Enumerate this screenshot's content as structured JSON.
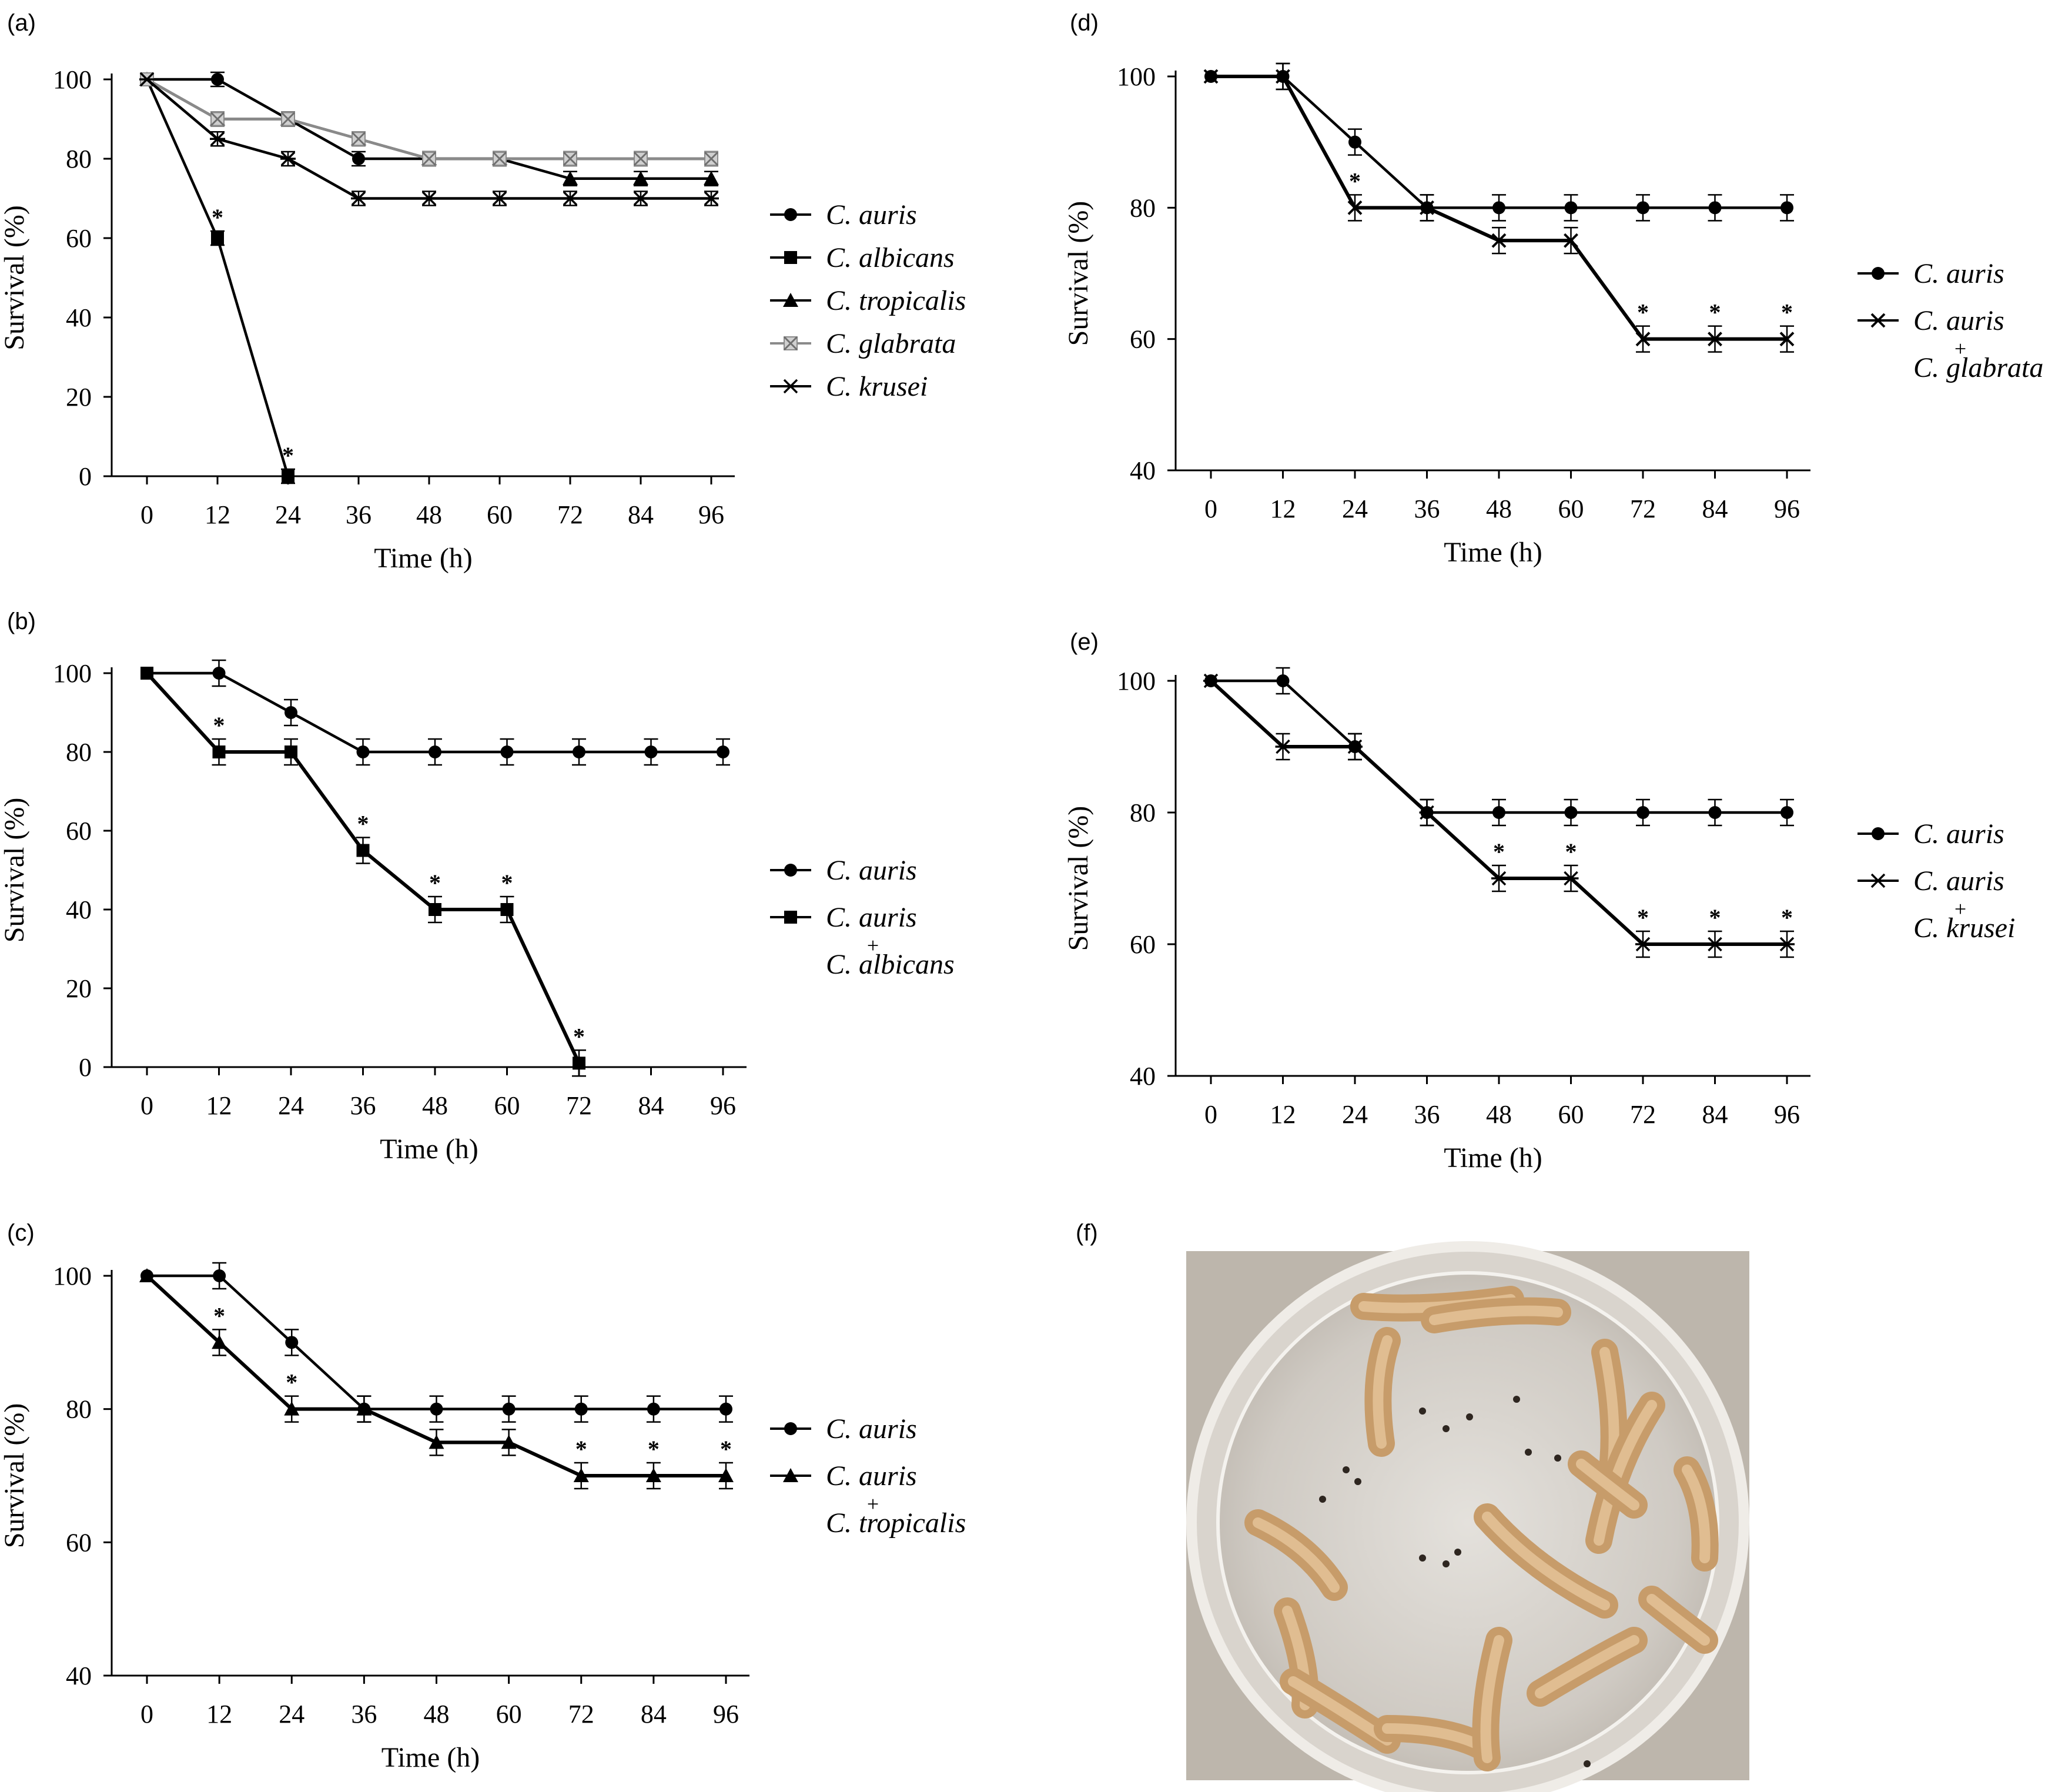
{
  "panels": [
    "(a)",
    "(b)",
    "(c)",
    "(d)",
    "(e)",
    "(f)"
  ],
  "photo": {
    "description_name": "Galleria mellonella larvae in petri dish"
  },
  "colors": {
    "line": "#000000",
    "glabrata": "#8a8a8a",
    "plate": "#d6d0c8"
  },
  "chart_data": [
    {
      "panel": "(a)",
      "type": "line",
      "xlabel": "Time (h)",
      "ylabel": "Survival (%)",
      "ylim": [
        0,
        100
      ],
      "yticks": [
        0,
        20,
        40,
        60,
        80,
        100
      ],
      "x": [
        0,
        12,
        24,
        36,
        48,
        60,
        72,
        84,
        96
      ],
      "series": [
        {
          "name": "C. auris",
          "marker": "circle",
          "values": [
            100,
            100,
            90,
            80,
            80,
            80,
            80,
            80,
            80
          ]
        },
        {
          "name": "C. albicans",
          "marker": "square",
          "values": [
            100,
            60,
            0,
            null,
            null,
            null,
            null,
            null,
            null
          ],
          "sig": [
            false,
            true,
            true,
            false,
            false,
            false,
            false,
            false,
            false
          ]
        },
        {
          "name": "C. tropicalis",
          "marker": "triangle",
          "values": [
            100,
            90,
            90,
            85,
            80,
            80,
            75,
            75,
            75
          ]
        },
        {
          "name": "C. glabrata",
          "marker": "xbox",
          "values": [
            100,
            90,
            90,
            85,
            80,
            80,
            80,
            80,
            80
          ]
        },
        {
          "name": "C. krusei",
          "marker": "star",
          "values": [
            100,
            85,
            80,
            70,
            70,
            70,
            70,
            70,
            70
          ]
        }
      ]
    },
    {
      "panel": "(b)",
      "type": "line",
      "xlabel": "Time (h)",
      "ylabel": "Survival (%)",
      "ylim": [
        0,
        100
      ],
      "yticks": [
        0,
        20,
        40,
        60,
        80,
        100
      ],
      "x": [
        0,
        12,
        24,
        36,
        48,
        60,
        72,
        84,
        96
      ],
      "series": [
        {
          "name": "C. auris",
          "marker": "circle",
          "values": [
            100,
            100,
            90,
            80,
            80,
            80,
            80,
            80,
            80
          ]
        },
        {
          "name": "C. auris + C. albicans",
          "marker": "square",
          "values": [
            100,
            80,
            80,
            55,
            40,
            40,
            1,
            null,
            null
          ],
          "sig": [
            false,
            true,
            false,
            true,
            true,
            true,
            true,
            false,
            false
          ]
        }
      ],
      "legend_lines": [
        {
          "text": "C. auris",
          "marker": "circle"
        },
        {
          "text": "C. auris",
          "marker": "square"
        },
        {
          "text": "+",
          "marker": null
        },
        {
          "text": "C. albicans",
          "marker": null
        }
      ]
    },
    {
      "panel": "(c)",
      "type": "line",
      "xlabel": "Time (h)",
      "ylabel": "Survival (%)",
      "ylim": [
        40,
        100
      ],
      "yticks": [
        40,
        60,
        80,
        100
      ],
      "x": [
        0,
        12,
        24,
        36,
        48,
        60,
        72,
        84,
        96
      ],
      "series": [
        {
          "name": "C. auris",
          "marker": "circle",
          "values": [
            100,
            100,
            90,
            80,
            80,
            80,
            80,
            80,
            80
          ]
        },
        {
          "name": "C. auris + C. tropicalis",
          "marker": "triangle",
          "values": [
            100,
            90,
            80,
            80,
            75,
            75,
            70,
            70,
            70
          ],
          "sig": [
            false,
            true,
            true,
            false,
            false,
            false,
            true,
            true,
            true
          ]
        }
      ],
      "legend_lines": [
        {
          "text": "C. auris",
          "marker": "circle"
        },
        {
          "text": "C. auris",
          "marker": "triangle"
        },
        {
          "text": "+",
          "marker": null
        },
        {
          "text": "C. tropicalis",
          "marker": null
        }
      ]
    },
    {
      "panel": "(d)",
      "type": "line",
      "xlabel": "Time (h)",
      "ylabel": "Survival (%)",
      "ylim": [
        40,
        100
      ],
      "yticks": [
        40,
        60,
        80,
        100
      ],
      "x": [
        0,
        12,
        24,
        36,
        48,
        60,
        72,
        84,
        96
      ],
      "series": [
        {
          "name": "C. auris",
          "marker": "circle",
          "values": [
            100,
            100,
            90,
            80,
            80,
            80,
            80,
            80,
            80
          ]
        },
        {
          "name": "C. auris + C. glabrata",
          "marker": "x",
          "values": [
            100,
            100,
            80,
            80,
            75,
            75,
            60,
            60,
            60
          ],
          "sig": [
            false,
            false,
            true,
            false,
            false,
            false,
            true,
            true,
            true
          ]
        }
      ],
      "legend_lines": [
        {
          "text": "C. auris",
          "marker": "circle"
        },
        {
          "text": "C. auris",
          "marker": "x"
        },
        {
          "text": "+",
          "marker": null
        },
        {
          "text": "C. glabrata",
          "marker": null
        }
      ]
    },
    {
      "panel": "(e)",
      "type": "line",
      "xlabel": "Time (h)",
      "ylabel": "Survival (%)",
      "ylim": [
        40,
        100
      ],
      "yticks": [
        40,
        60,
        80,
        100
      ],
      "x": [
        0,
        12,
        24,
        36,
        48,
        60,
        72,
        84,
        96
      ],
      "series": [
        {
          "name": "C. auris",
          "marker": "circle",
          "values": [
            100,
            100,
            90,
            80,
            80,
            80,
            80,
            80,
            80
          ]
        },
        {
          "name": "C. auris + C. krusei",
          "marker": "star",
          "values": [
            100,
            90,
            90,
            80,
            70,
            70,
            60,
            60,
            60
          ],
          "sig": [
            false,
            false,
            false,
            false,
            true,
            true,
            true,
            true,
            true
          ]
        }
      ],
      "legend_lines": [
        {
          "text": "C. auris",
          "marker": "circle"
        },
        {
          "text": "C. auris",
          "marker": "star"
        },
        {
          "text": "+",
          "marker": null
        },
        {
          "text": "C. krusei",
          "marker": null
        }
      ]
    }
  ]
}
